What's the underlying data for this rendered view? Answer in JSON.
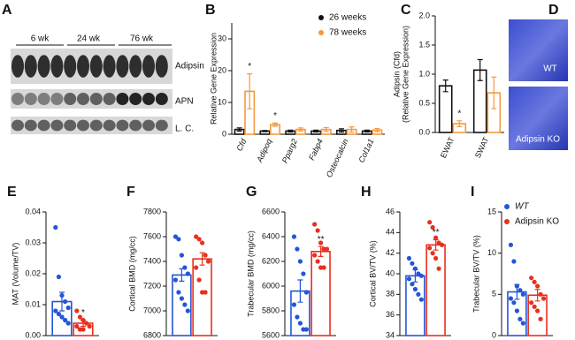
{
  "blot": {
    "panel": "A",
    "groups": [
      "6 wk",
      "24 wk",
      "76 wk"
    ],
    "bands": [
      "Adipsin",
      "APN",
      "L. C."
    ]
  },
  "images": {
    "panel": "D",
    "labels": [
      "WT",
      "Adipsin KO"
    ]
  },
  "chart_data": [
    {
      "type": "bar",
      "panel": "B",
      "ylabel": [
        "Relative Gene Expression"
      ],
      "categories": [
        "Cfd",
        "Adipoq",
        "Pparg2",
        "Fabp4",
        "Osteocalcin",
        "Col1a1"
      ],
      "category_style": "italic",
      "series": [
        {
          "name": "26 weeks",
          "color": "#111111",
          "values": [
            1.5,
            1.0,
            1.0,
            1.0,
            1.2,
            1.0
          ],
          "errors": [
            0.5,
            0.2,
            0.3,
            0.3,
            0.5,
            0.3
          ]
        },
        {
          "name": "78 weeks",
          "color": "#f39a3c",
          "values": [
            13.5,
            3.0,
            1.5,
            1.5,
            1.5,
            1.3
          ],
          "errors": [
            5.5,
            0.5,
            0.5,
            0.6,
            0.8,
            0.5
          ]
        }
      ],
      "ylim": [
        0,
        35
      ],
      "yticks": [
        0,
        10,
        20,
        30
      ],
      "legend": "upper right",
      "annotations": [
        {
          "text": "*",
          "category": 0,
          "series": 1
        },
        {
          "text": "*",
          "category": 1,
          "series": 1
        }
      ]
    },
    {
      "type": "bar",
      "panel": "C",
      "ylabel": [
        "Adipsin (Cfd)",
        "(Relative Gene Expression)"
      ],
      "categories": [
        "EWAT",
        "SWAT"
      ],
      "series": [
        {
          "color": "#111111",
          "values": [
            0.8,
            1.07
          ],
          "errors": [
            0.1,
            0.18
          ]
        },
        {
          "color": "#f39a3c",
          "values": [
            0.15,
            0.68
          ],
          "errors": [
            0.05,
            0.27
          ]
        }
      ],
      "ylim": [
        0,
        2
      ],
      "yticks": [
        {
          "value": 0,
          "label": "0.0"
        },
        {
          "value": 0.5,
          "label": "0.5"
        },
        {
          "value": 1,
          "label": "1.0"
        },
        {
          "value": 1.5,
          "label": "1.5"
        },
        {
          "value": 2,
          "label": "2.0"
        }
      ],
      "annotations": [
        {
          "text": "*",
          "category": 0,
          "series": 1
        }
      ]
    },
    {
      "type": "bar",
      "panel": "E",
      "ylabel": [
        "MAT (Volume/TV)"
      ],
      "series": [
        {
          "color": "#2455d6",
          "values": [
            0.011
          ],
          "errors": [
            0.003
          ],
          "points": [
            0.035,
            0.019,
            0.013,
            0.011,
            0.009,
            0.008,
            0.007,
            0.006,
            0.005,
            0.004
          ]
        },
        {
          "color": "#e8301e",
          "values": [
            0.004
          ],
          "errors": [
            0.001
          ],
          "points": [
            0.008,
            0.006,
            0.005,
            0.004,
            0.003,
            0.003,
            0.002,
            0.002
          ]
        }
      ],
      "ylim": [
        0,
        0.04
      ],
      "yticks": [
        {
          "value": 0,
          "label": "0.00"
        },
        {
          "value": 0.01,
          "label": "0.01"
        },
        {
          "value": 0.02,
          "label": "0.02"
        },
        {
          "value": 0.03,
          "label": "0.03"
        },
        {
          "value": 0.04,
          "label": "0.04"
        }
      ],
      "annotations": [
        {
          "text": "*",
          "category": 0,
          "series": 1
        }
      ]
    },
    {
      "type": "bar",
      "panel": "F",
      "ylabel": [
        "Cortical BMD (mg/cc)"
      ],
      "series": [
        {
          "color": "#2455d6",
          "values": [
            7290
          ],
          "errors": [
            50
          ],
          "points": [
            7600,
            7580,
            7450,
            7350,
            7300,
            7250,
            7150,
            7100,
            7050,
            7000
          ]
        },
        {
          "color": "#e8301e",
          "values": [
            7420
          ],
          "errors": [
            50
          ],
          "points": [
            7600,
            7580,
            7550,
            7450,
            7400,
            7350,
            7250,
            7150,
            7150
          ]
        }
      ],
      "ylim": [
        6800,
        7800
      ],
      "yticks": [
        6800,
        7000,
        7200,
        7400,
        7600,
        7800
      ]
    },
    {
      "type": "bar",
      "panel": "G",
      "ylabel": [
        "Trabecular BMD (mg/cc)"
      ],
      "series": [
        {
          "color": "#2455d6",
          "values": [
            5960
          ],
          "errors": [
            90
          ],
          "points": [
            6400,
            6300,
            6200,
            6100,
            5950,
            5850,
            5750,
            5700,
            5650,
            5650
          ]
        },
        {
          "color": "#e8301e",
          "values": [
            6280
          ],
          "errors": [
            40
          ],
          "points": [
            6500,
            6450,
            6350,
            6300,
            6300,
            6250,
            6200,
            6150,
            6150
          ]
        }
      ],
      "ylim": [
        5600,
        6600
      ],
      "yticks": [
        5600,
        5800,
        6000,
        6200,
        6400,
        6600
      ],
      "annotations": [
        {
          "text": "**",
          "category": 0,
          "series": 1
        }
      ]
    },
    {
      "type": "bar",
      "panel": "H",
      "ylabel": [
        "Cortical BV/TV (%)"
      ],
      "series": [
        {
          "color": "#2455d6",
          "values": [
            39.8
          ],
          "errors": [
            0.6
          ],
          "points": [
            41.5,
            41,
            40.5,
            40,
            39.8,
            39.5,
            39,
            38.5,
            38,
            37.5
          ]
        },
        {
          "color": "#e8301e",
          "values": [
            42.8
          ],
          "errors": [
            0.5
          ],
          "points": [
            45,
            44.5,
            43.5,
            43,
            42.8,
            42.5,
            42,
            41.5,
            40.5
          ]
        }
      ],
      "ylim": [
        34,
        46
      ],
      "yticks": [
        34,
        36,
        38,
        40,
        42,
        44,
        46
      ],
      "annotations": [
        {
          "text": "**",
          "category": 0,
          "series": 1
        }
      ]
    },
    {
      "type": "bar",
      "panel": "I",
      "ylabel": [
        "Trabecular BV/TV (%)"
      ],
      "series": [
        {
          "name": "WT",
          "color": "#2455d6",
          "values": [
            5.3
          ],
          "errors": [
            0.9
          ],
          "points": [
            11,
            9,
            6,
            5.5,
            5,
            4.5,
            4,
            3,
            2,
            1.5
          ]
        },
        {
          "name": "Adipsin KO",
          "color": "#e8301e",
          "values": [
            4.9
          ],
          "errors": [
            0.7
          ],
          "points": [
            7,
            6.5,
            6,
            5,
            4.5,
            4,
            3.5,
            3,
            2
          ]
        }
      ],
      "ylim": [
        0,
        15
      ],
      "yticks": [
        0,
        5,
        10,
        15
      ],
      "legend": "upper left"
    }
  ]
}
